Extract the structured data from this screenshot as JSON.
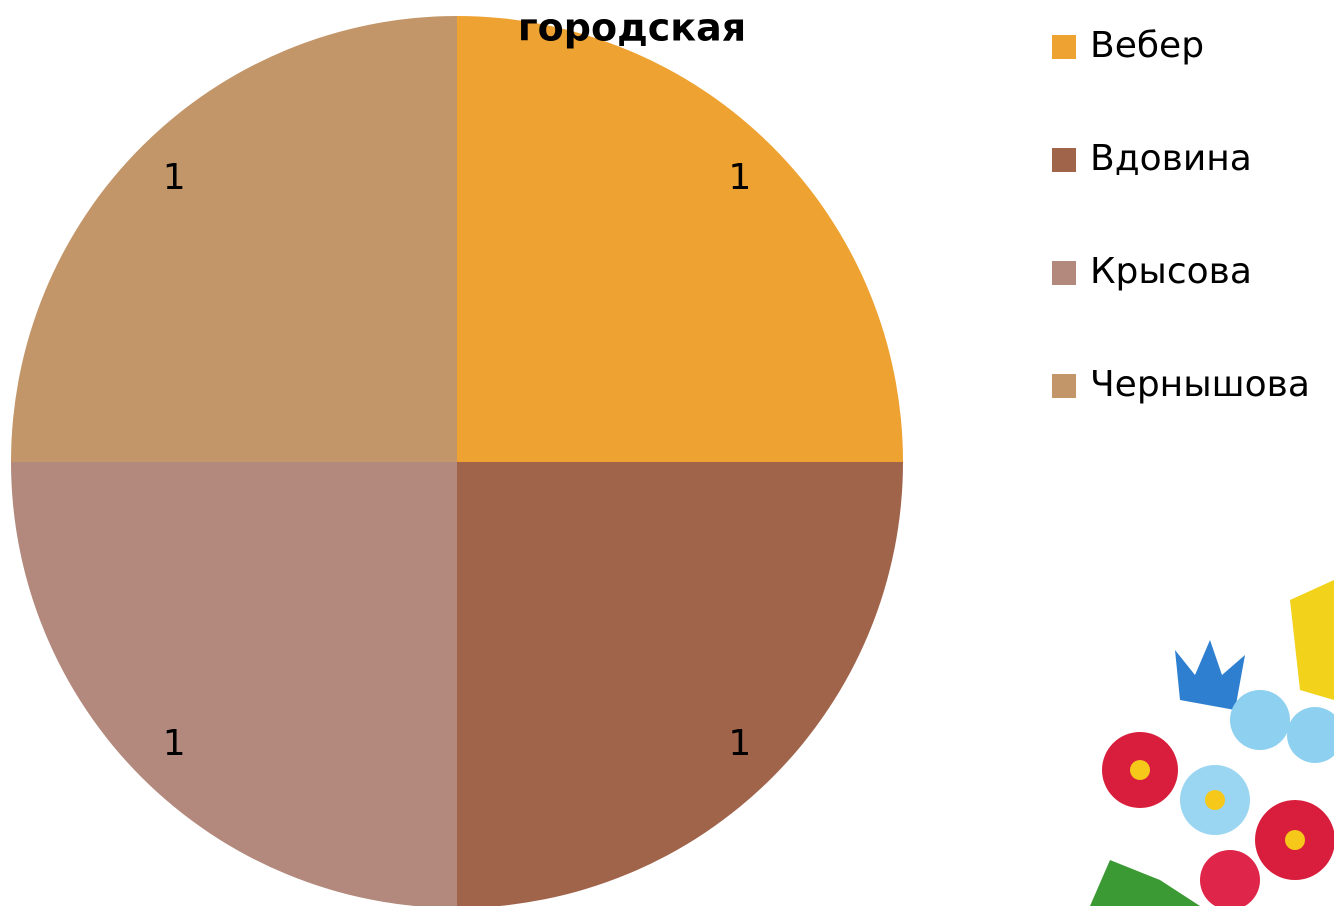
{
  "chart_data": {
    "type": "pie",
    "title": "городская",
    "categories": [
      "Вебер",
      "Вдовина",
      "Крысова",
      "Чернышова"
    ],
    "values": [
      1,
      1,
      1,
      1
    ],
    "colors": [
      "#eea231",
      "#a0644b",
      "#b2897c",
      "#c3966a"
    ]
  }
}
